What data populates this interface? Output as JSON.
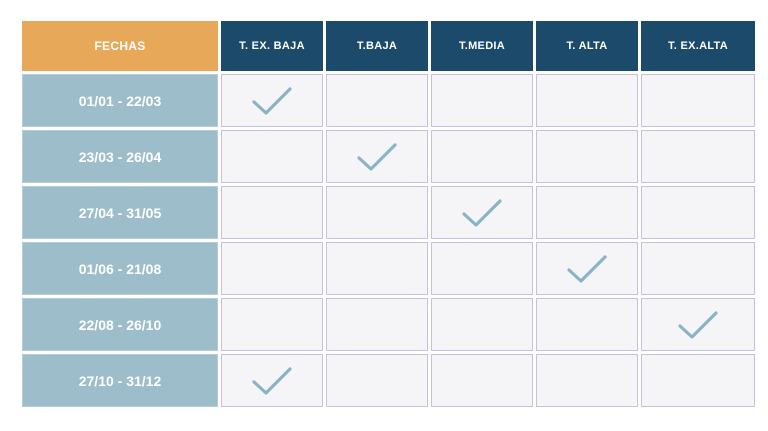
{
  "table": {
    "date_header": "FECHAS",
    "season_headers": [
      "T. EX. BAJA",
      "T.BAJA",
      "T.MEDIA",
      "T. ALTA",
      "T. EX.ALTA"
    ],
    "rows": [
      {
        "date": "01/01 - 22/03",
        "marks": [
          true,
          false,
          false,
          false,
          false
        ]
      },
      {
        "date": "23/03 - 26/04",
        "marks": [
          false,
          true,
          false,
          false,
          false
        ]
      },
      {
        "date": "27/04 - 31/05",
        "marks": [
          false,
          false,
          true,
          false,
          false
        ]
      },
      {
        "date": "01/06 - 21/08",
        "marks": [
          false,
          false,
          false,
          true,
          false
        ]
      },
      {
        "date": "22/08 - 26/10",
        "marks": [
          false,
          false,
          false,
          false,
          true
        ]
      },
      {
        "date": "27/10 - 31/12",
        "marks": [
          true,
          false,
          false,
          false,
          false
        ]
      }
    ]
  },
  "colors": {
    "date_header_bg": "#e8a85a",
    "season_header_bg": "#1c4a6a",
    "date_cell_bg": "#9cbdc9",
    "empty_cell_bg": "#f5f5f7",
    "cell_border": "#c9c1db",
    "check": "#8ab4c6"
  },
  "icons": {
    "check": "checkmark-icon"
  }
}
